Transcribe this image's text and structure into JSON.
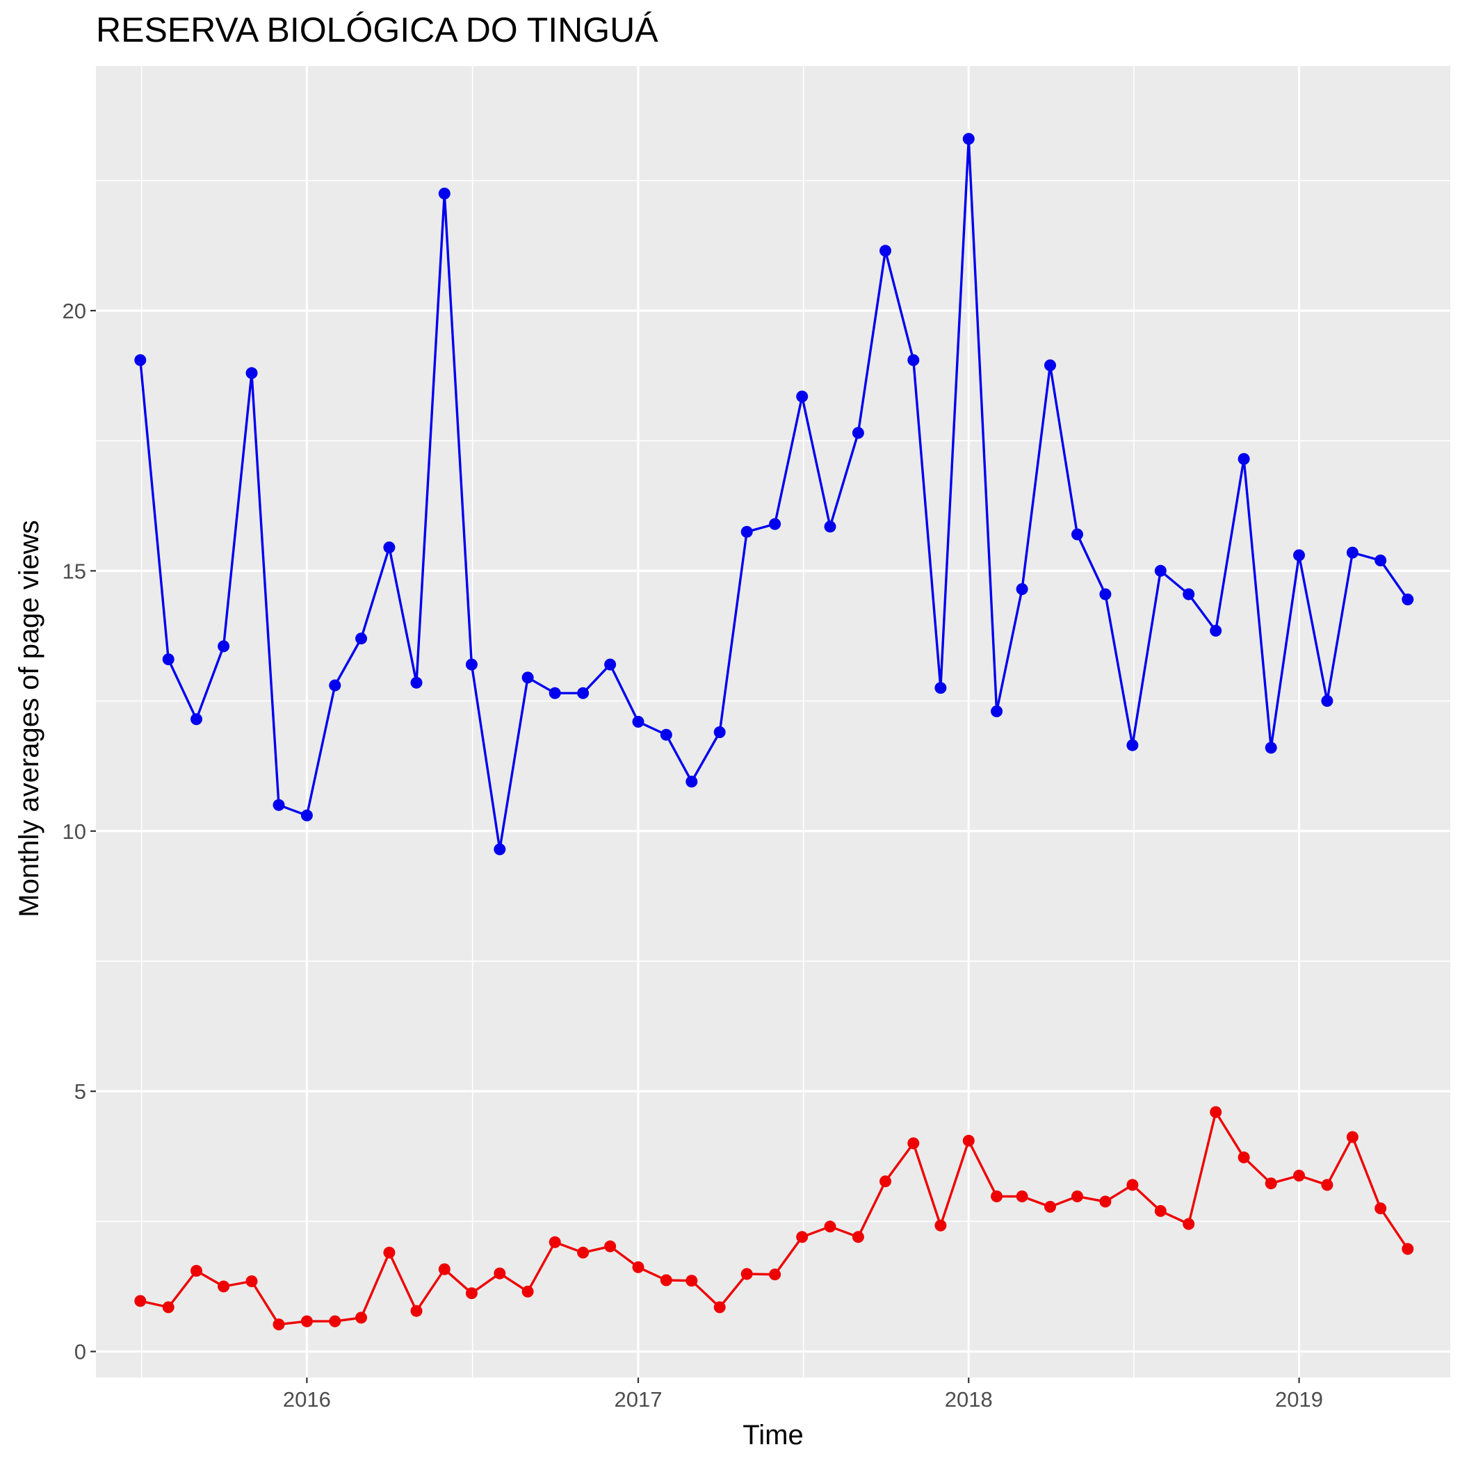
{
  "chart_data": {
    "type": "line",
    "title": "RESERVA BIOLÓGICA DO TINGUÁ",
    "xlabel": "Time",
    "ylabel": "Monthly averages of page views",
    "x_range": [
      "2015-05-13",
      "2019-06-17"
    ],
    "ylim": [
      -0.5,
      24.7
    ],
    "x_ticks": [
      {
        "date": "2016-01-01",
        "label": "2016"
      },
      {
        "date": "2017-01-01",
        "label": "2017"
      },
      {
        "date": "2018-01-01",
        "label": "2018"
      },
      {
        "date": "2019-01-01",
        "label": "2019"
      }
    ],
    "y_ticks": [
      0,
      5,
      10,
      15,
      20
    ],
    "y_tick_labels": [
      "0",
      "5",
      "10",
      "15",
      "20"
    ],
    "grid": true,
    "legend": "none",
    "panel_background": "#ebebeb",
    "dates": [
      "2015-07-01",
      "2015-08-01",
      "2015-09-01",
      "2015-10-01",
      "2015-11-01",
      "2015-12-01",
      "2016-01-01",
      "2016-02-01",
      "2016-03-01",
      "2016-04-01",
      "2016-05-01",
      "2016-06-01",
      "2016-07-01",
      "2016-08-01",
      "2016-09-01",
      "2016-10-01",
      "2016-11-01",
      "2016-12-01",
      "2017-01-01",
      "2017-02-01",
      "2017-03-01",
      "2017-04-01",
      "2017-05-01",
      "2017-06-01",
      "2017-07-01",
      "2017-08-01",
      "2017-09-01",
      "2017-10-01",
      "2017-11-01",
      "2017-12-01",
      "2018-01-01",
      "2018-02-01",
      "2018-03-01",
      "2018-04-01",
      "2018-05-01",
      "2018-06-01",
      "2018-07-01",
      "2018-08-01",
      "2018-09-01",
      "2018-10-01",
      "2018-11-01",
      "2018-12-01",
      "2019-01-01",
      "2019-02-01",
      "2019-03-01",
      "2019-04-01",
      "2019-05-01"
    ],
    "series": [
      {
        "color": "#0000ee",
        "values": [
          19.05,
          13.3,
          12.15,
          13.55,
          18.8,
          10.5,
          10.3,
          12.8,
          13.7,
          15.45,
          12.85,
          22.25,
          13.2,
          9.65,
          12.95,
          12.65,
          12.65,
          13.2,
          12.1,
          11.85,
          10.95,
          11.9,
          15.75,
          15.9,
          18.35,
          15.85,
          17.65,
          21.15,
          19.05,
          12.75,
          23.3,
          12.3,
          14.65,
          18.95,
          15.7,
          14.55,
          11.65,
          15.0,
          14.55,
          13.85,
          17.15,
          11.6,
          15.3,
          12.5,
          15.35,
          15.2,
          14.45
        ]
      },
      {
        "color": "#ee0000",
        "values": [
          0.97,
          0.85,
          1.55,
          1.25,
          1.35,
          0.52,
          0.58,
          0.58,
          0.65,
          1.9,
          0.78,
          1.58,
          1.12,
          1.5,
          1.15,
          2.1,
          1.9,
          2.02,
          1.62,
          1.37,
          1.36,
          0.85,
          1.49,
          1.48,
          2.2,
          2.4,
          2.2,
          3.27,
          4.0,
          2.42,
          4.05,
          2.98,
          2.98,
          2.78,
          2.98,
          2.88,
          3.2,
          2.7,
          2.45,
          4.6,
          3.73,
          3.23,
          3.38,
          3.2,
          4.12,
          2.75,
          1.97
        ]
      }
    ]
  }
}
